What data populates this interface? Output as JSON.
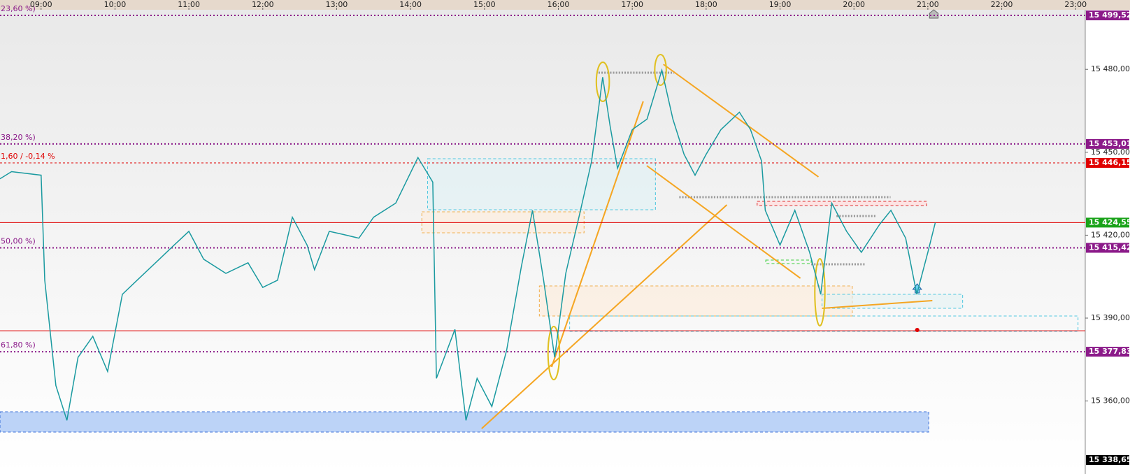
{
  "chart_data": {
    "type": "line",
    "x": [
      8.444,
      8.6,
      9.0,
      9.05,
      9.2,
      9.35,
      9.5,
      9.7,
      9.9,
      10.1,
      10.3,
      10.6,
      10.8,
      11.0,
      11.2,
      11.5,
      11.8,
      12.0,
      12.2,
      12.4,
      12.6,
      12.7,
      12.9,
      13.1,
      13.3,
      13.5,
      13.8,
      14.1,
      14.3,
      14.35,
      14.6,
      14.75,
      14.9,
      15.1,
      15.3,
      15.5,
      15.65,
      15.8,
      15.95,
      16.1,
      16.3,
      16.45,
      16.6,
      16.7,
      16.8,
      17.0,
      17.2,
      17.4,
      17.55,
      17.7,
      17.85,
      18.0,
      18.2,
      18.45,
      18.6,
      18.75,
      18.8,
      19.0,
      19.2,
      19.4,
      19.55,
      19.7,
      19.9,
      20.1,
      20.35,
      20.5,
      20.7,
      20.85,
      21.0,
      21.1
    ],
    "series": [
      {
        "color": "#1a9aa0",
        "values": [
          15440.4,
          15443.0,
          15441.7,
          15403.7,
          15365.6,
          15353.0,
          15375.8,
          15383.4,
          15370.7,
          15398.6,
          15403.7,
          15411.3,
          15416.4,
          15421.4,
          15411.3,
          15406.2,
          15410.0,
          15401.1,
          15403.7,
          15426.5,
          15416.4,
          15407.5,
          15421.4,
          15420.2,
          15418.9,
          15426.5,
          15431.6,
          15448.1,
          15439.2,
          15368.2,
          15385.9,
          15353.0,
          15368.2,
          15358.0,
          15378.3,
          15408.8,
          15429.0,
          15403.7,
          15375.8,
          15406.2,
          15429.0,
          15446.8,
          15477.2,
          15459.5,
          15444.2,
          15458.2,
          15462.0,
          15479.7,
          15462.0,
          15449.3,
          15441.7,
          15449.3,
          15458.2,
          15464.5,
          15458.2,
          15446.8,
          15429.0,
          15416.4,
          15429.0,
          15413.8,
          15398.6,
          15431.6,
          15421.4,
          15413.8,
          15424.0,
          15429.0,
          15418.9,
          15398.6,
          15413.8,
          15424.5
        ]
      }
    ],
    "xlim": [
      8.444,
      23.13
    ],
    "xticks": [
      {
        "value": 9,
        "label": "09:00"
      },
      {
        "value": 10,
        "label": "10:00"
      },
      {
        "value": 11,
        "label": "11:00"
      },
      {
        "value": 12,
        "label": "12:00"
      },
      {
        "value": 13,
        "label": "13:00"
      },
      {
        "value": 14,
        "label": "14:00"
      },
      {
        "value": 15,
        "label": "15:00"
      },
      {
        "value": 16,
        "label": "16:00"
      },
      {
        "value": 17,
        "label": "17:00"
      },
      {
        "value": 18,
        "label": "18:00"
      },
      {
        "value": 19,
        "label": "19:00"
      },
      {
        "value": 20,
        "label": "20:00"
      },
      {
        "value": 21,
        "label": "21:00"
      },
      {
        "value": 22,
        "label": "22:00"
      },
      {
        "value": 23,
        "label": "23:00"
      }
    ],
    "ylim": [
      15338.65,
      15501.55
    ],
    "yticks": [
      {
        "value": 15480,
        "label": "15 480,00"
      },
      {
        "value": 15450,
        "label": "15 450,00"
      },
      {
        "value": 15420,
        "label": "15 420,00"
      },
      {
        "value": 15390,
        "label": "15 390,00"
      },
      {
        "value": 15360,
        "label": "15 360,00"
      }
    ],
    "levels": [
      {
        "value": 15499.52,
        "label": "15 499,52",
        "note": "23,60 %)",
        "color": "#8b1a89",
        "style": "dotted"
      },
      {
        "value": 15453.01,
        "label": "15 453,01",
        "note": "38,20 %)",
        "color": "#8b1a89",
        "style": "dotted"
      },
      {
        "value": 15446.15,
        "label": "15 446,15",
        "note": "1,60 / -0,14 %",
        "color": "#e00000",
        "style": "dashed"
      },
      {
        "value": 15424.55,
        "label": "15 424,55",
        "color": "#e00000",
        "style": "solid",
        "tag_color": "#1aa31a"
      },
      {
        "value": 15415.42,
        "label": "15 415,42",
        "note": "50,00 %)",
        "color": "#8b1a89",
        "style": "dotted"
      },
      {
        "value": 15385.4,
        "color": "#e00000",
        "style": "solid"
      },
      {
        "value": 15377.83,
        "label": "15 377,83",
        "note": "61,80 %)",
        "color": "#8b1a89",
        "style": "dotted"
      },
      {
        "value": 15338.65,
        "label": "15 338,65",
        "color": "#000000",
        "style": "none"
      }
    ]
  }
}
